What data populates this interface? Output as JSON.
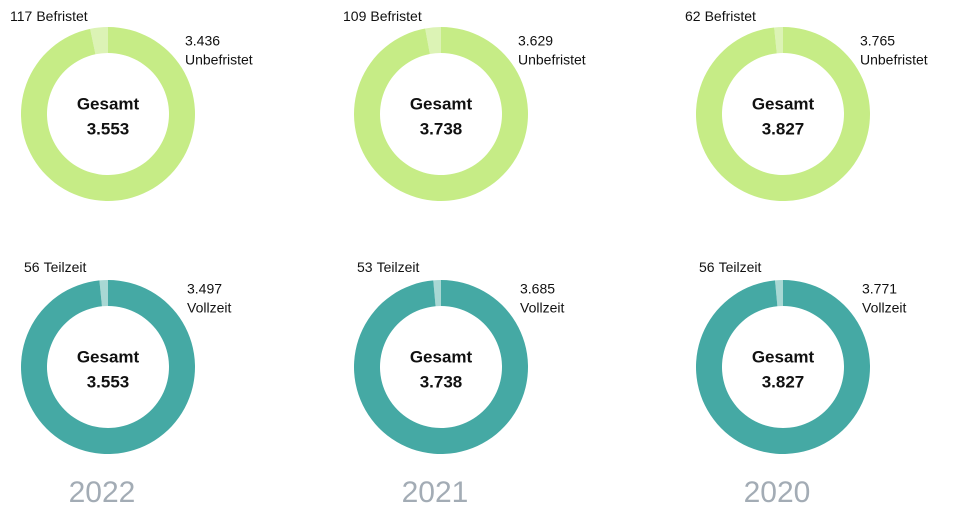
{
  "chart_data": [
    {
      "type": "pie",
      "categories": [
        "Befristet",
        "Unbefristet"
      ],
      "values": [
        117,
        3436
      ],
      "value_labels": [
        "117",
        "3.436"
      ],
      "colors": [
        "#dcf3b5",
        "#c6ec86"
      ],
      "center_label": "Gesamt",
      "total": {
        "value": 3553,
        "label": "3.553"
      }
    },
    {
      "type": "pie",
      "categories": [
        "Befristet",
        "Unbefristet"
      ],
      "values": [
        109,
        3629
      ],
      "value_labels": [
        "109",
        "3.629"
      ],
      "colors": [
        "#dcf3b5",
        "#c6ec86"
      ],
      "center_label": "Gesamt",
      "total": {
        "value": 3738,
        "label": "3.738"
      }
    },
    {
      "type": "pie",
      "categories": [
        "Befristet",
        "Unbefristet"
      ],
      "values": [
        62,
        3765
      ],
      "value_labels": [
        "62",
        "3.765"
      ],
      "colors": [
        "#dcf3b5",
        "#c6ec86"
      ],
      "center_label": "Gesamt",
      "total": {
        "value": 3827,
        "label": "3.827"
      }
    },
    {
      "type": "pie",
      "categories": [
        "Teilzeit",
        "Vollzeit"
      ],
      "values": [
        56,
        3497
      ],
      "value_labels": [
        "56",
        "3.497"
      ],
      "colors": [
        "#a9d8d4",
        "#45a9a4"
      ],
      "center_label": "Gesamt",
      "total": {
        "value": 3553,
        "label": "3.553"
      },
      "caption": "2022"
    },
    {
      "type": "pie",
      "categories": [
        "Teilzeit",
        "Vollzeit"
      ],
      "values": [
        53,
        3685
      ],
      "value_labels": [
        "53",
        "3.685"
      ],
      "colors": [
        "#a9d8d4",
        "#45a9a4"
      ],
      "center_label": "Gesamt",
      "total": {
        "value": 3738,
        "label": "3.738"
      },
      "caption": "2021"
    },
    {
      "type": "pie",
      "categories": [
        "Teilzeit",
        "Vollzeit"
      ],
      "values": [
        56,
        3771
      ],
      "value_labels": [
        "56",
        "3.771"
      ],
      "colors": [
        "#a9d8d4",
        "#45a9a4"
      ],
      "center_label": "Gesamt",
      "total": {
        "value": 3827,
        "label": "3.827"
      },
      "caption": "2020"
    }
  ]
}
